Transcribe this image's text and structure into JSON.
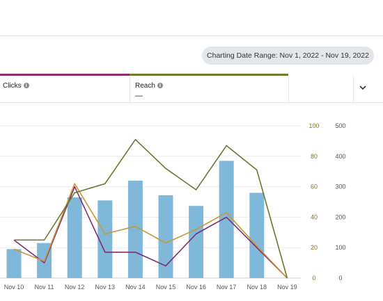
{
  "header": {
    "date_range_label": "Charting Date Range: Nov 1, 2022 - Nov 19, 2022"
  },
  "metrics": {
    "clicks": {
      "label": "Clicks",
      "color": "#8e2e6a"
    },
    "reach": {
      "label": "Reach",
      "value": "—",
      "color": "#6b7f2a"
    }
  },
  "colors": {
    "bars": "#7fb8d8",
    "clicks_line": "#7d2f6e",
    "orange_line": "#c9963a",
    "reach_line": "#667a2c"
  },
  "icons": {
    "info": "info-icon",
    "expand": "chevron-down-icon"
  },
  "chart_data": {
    "type": "bar",
    "categories": [
      "Nov 10",
      "Nov 11",
      "Nov 12",
      "Nov 13",
      "Nov 14",
      "Nov 15",
      "Nov 16",
      "Nov 17",
      "Nov 18",
      "Nov 19"
    ],
    "ylim_left": [
      0,
      100
    ],
    "ylim_right": [
      0,
      500
    ],
    "yticks_left": [
      "100",
      "80",
      "60",
      "40",
      "20",
      "0"
    ],
    "yticks_right": [
      "500",
      "400",
      "300",
      "200",
      "100",
      "0"
    ],
    "series": [
      {
        "type": "bar",
        "axis": "right",
        "values": [
          95,
          115,
          265,
          255,
          320,
          272,
          237,
          385,
          280,
          0
        ]
      },
      {
        "type": "line",
        "axis": "left",
        "values": [
          25,
          10,
          60,
          17,
          17,
          8,
          29,
          40,
          20,
          0
        ]
      },
      {
        "type": "line",
        "axis": "left",
        "values": [
          19,
          11,
          62,
          29,
          34,
          23,
          32,
          43,
          21,
          0
        ]
      },
      {
        "type": "line",
        "axis": "right",
        "values": [
          125,
          125,
          280,
          310,
          455,
          360,
          290,
          435,
          355,
          0
        ]
      }
    ],
    "grid": true
  }
}
